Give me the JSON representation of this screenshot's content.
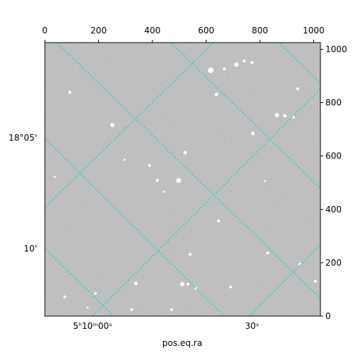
{
  "chart_data": {
    "type": "image",
    "x_label": "pos.eq.ra",
    "xlim": [
      0,
      1025
    ],
    "ylim": [
      0,
      1025
    ],
    "xticks": [
      0,
      200,
      400,
      600,
      800,
      1000
    ],
    "yticks": [
      0,
      200,
      400,
      600,
      800,
      1000
    ],
    "world_ticks_bottom": [
      "5ʰ10ᵐ00ˢ",
      "30ˢ"
    ],
    "world_ticks_left": [
      "18°05'",
      "10'"
    ]
  }
}
